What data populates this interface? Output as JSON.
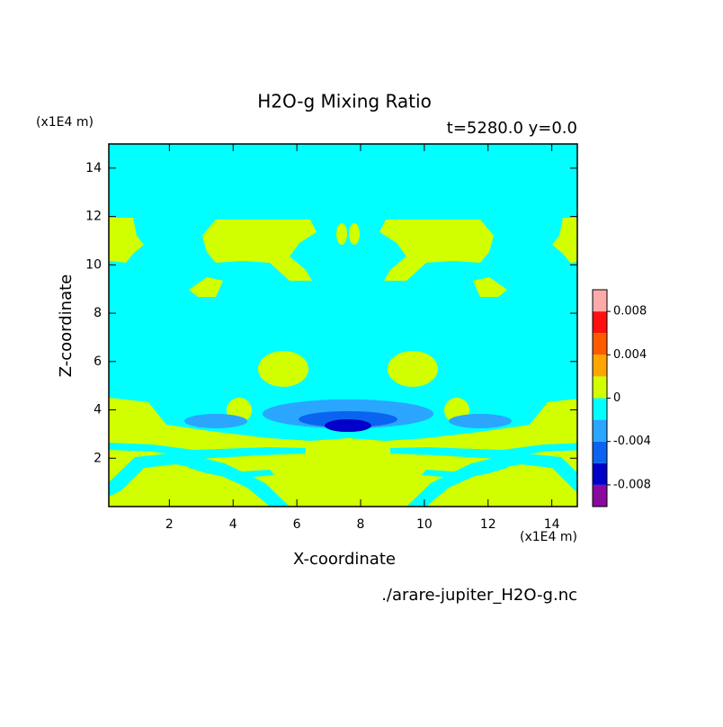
{
  "chart_data": {
    "type": "contour",
    "title": "H2O-g Mixing Ratio",
    "subtitle": "t=5280.0 y=0.0",
    "xlabel": "X-coordinate",
    "ylabel": "Z-coordinate",
    "x_unit": "(x1E4 m)",
    "y_unit": "(x1E4 m)",
    "source": "./arare-jupiter_H2O-g.nc",
    "xlim": [
      0.1,
      14.8
    ],
    "ylim": [
      0,
      15
    ],
    "xticks": [
      2,
      4,
      6,
      8,
      10,
      12,
      14
    ],
    "yticks": [
      2,
      4,
      6,
      8,
      10,
      12,
      14
    ],
    "levels": [
      -0.01,
      -0.008,
      -0.006,
      -0.004,
      -0.002,
      0,
      0.002,
      0.004,
      0.006,
      0.008,
      0.01
    ],
    "colors": [
      "#8a0aa0",
      "#0000c8",
      "#0a64f0",
      "#2aa6ff",
      "#00ffff",
      "#d2ff00",
      "#ffa500",
      "#ff5a00",
      "#ff1010",
      "#ffaaaa"
    ],
    "colorbar_ticks": [
      -0.008,
      -0.004,
      0,
      0.004,
      0.008
    ]
  }
}
